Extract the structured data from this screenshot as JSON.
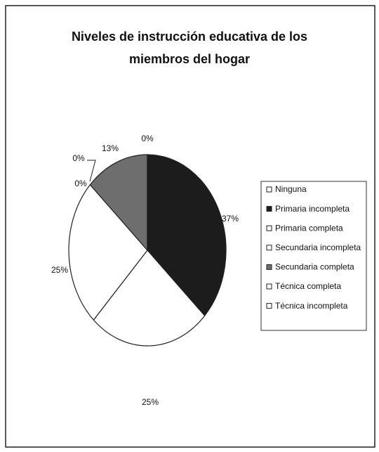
{
  "chart_data": {
    "type": "pie",
    "title": "Niveles de instrucción educativa de los miembros del hogar",
    "categories": [
      "Ninguna",
      "Primaria incompleta",
      "Primaria completa",
      "Secundaria incompleta",
      "Secundaria completa",
      "Técnica completa",
      "Técnica incompleta"
    ],
    "values": [
      0,
      37,
      25,
      25,
      13,
      0,
      0
    ],
    "value_labels": [
      "0%",
      "37%",
      "25%",
      "25%",
      "13%",
      "0%",
      "0%"
    ],
    "colors": [
      "#ffffff",
      "#1c1c1c",
      "#ffffff",
      "#ffffff",
      "#6e6e6e",
      "#ffffff",
      "#ffffff"
    ],
    "legend": "right"
  }
}
